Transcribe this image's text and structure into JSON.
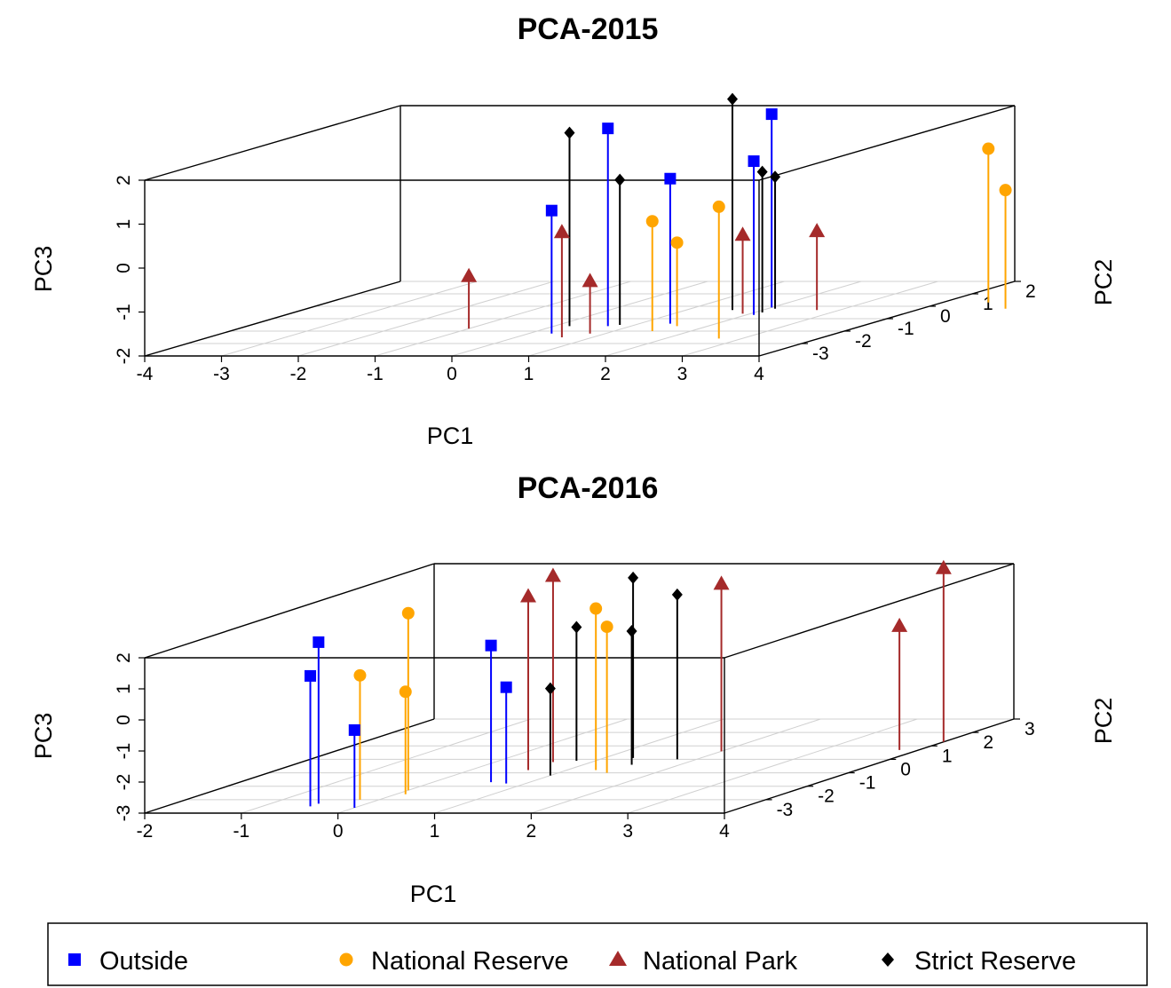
{
  "legend": {
    "items": [
      {
        "label": "Outside",
        "color": "#0000ff",
        "marker": "square"
      },
      {
        "label": "National Reserve",
        "color": "#ffa500",
        "marker": "circle"
      },
      {
        "label": "National Park",
        "color": "#a52a2a",
        "marker": "triangle"
      },
      {
        "label": "Strict Reserve",
        "color": "#000000",
        "marker": "diamond"
      }
    ]
  },
  "chart_data": [
    {
      "type": "scatter3d",
      "title": "PCA-2015",
      "xlabel": "PC1",
      "ylabel": "PC2",
      "zlabel": "PC3",
      "xlim": [
        -4,
        4
      ],
      "ylim": [
        -4,
        2
      ],
      "zlim": [
        -2,
        2
      ],
      "x_ticks": [
        "-4",
        "-3",
        "-2",
        "-1",
        "0",
        "1",
        "2",
        "3",
        "4"
      ],
      "y_ticks": [
        "-3",
        "-2",
        "-1",
        "0",
        "1",
        "2"
      ],
      "z_ticks": [
        "-2",
        "-1",
        "0",
        "1",
        "2"
      ],
      "grid": "floor",
      "series": [
        {
          "name": "Outside",
          "points": [
            [
              0.3,
              -2.2,
              0.8
            ],
            [
              0.7,
              -1.6,
              2.5
            ],
            [
              1.4,
              -1.4,
              1.3
            ],
            [
              2.1,
              -0.7,
              1.5
            ],
            [
              2.0,
              -0.1,
              2.4
            ]
          ]
        },
        {
          "name": "National Reserve",
          "points": [
            [
              1.5,
              -2.0,
              0.5
            ],
            [
              1.6,
              -1.6,
              -0.1
            ],
            [
              2.7,
              -2.6,
              1.0
            ],
            [
              4.6,
              0.3,
              1.5
            ],
            [
              5.1,
              -0.2,
              0.7
            ]
          ]
        },
        {
          "name": "National Park",
          "points": [
            [
              -1.0,
              -1.8,
              -0.8
            ],
            [
              0.6,
              -2.5,
              0.4
            ],
            [
              0.8,
              -2.2,
              -0.8
            ],
            [
              1.9,
              -0.6,
              -0.2
            ],
            [
              2.7,
              -0.3,
              -0.2
            ]
          ]
        },
        {
          "name": "Strict Reserve",
          "points": [
            [
              0.2,
              -1.6,
              2.4
            ],
            [
              0.8,
              -1.5,
              1.3
            ],
            [
              1.6,
              -0.3,
              2.8
            ],
            [
              2.1,
              -0.5,
              1.2
            ],
            [
              2.1,
              -0.2,
              1.0
            ]
          ]
        }
      ]
    },
    {
      "type": "scatter3d",
      "title": "PCA-2016",
      "xlabel": "PC1",
      "ylabel": "PC2",
      "zlabel": "PC3",
      "xlim": [
        -2,
        4
      ],
      "ylim": [
        -4,
        3
      ],
      "zlim": [
        -3,
        2
      ],
      "x_ticks": [
        "-2",
        "-1",
        "0",
        "1",
        "2",
        "3",
        "4"
      ],
      "y_ticks": [
        "-3",
        "-2",
        "-1",
        "0",
        "1",
        "2",
        "3"
      ],
      "z_ticks": [
        "-3",
        "-2",
        "-1",
        "0",
        "1",
        "2"
      ],
      "grid": "floor",
      "series": [
        {
          "name": "Outside",
          "points": [
            [
              -0.5,
              -3.3,
              2.2
            ],
            [
              -0.5,
              -3.5,
              1.2
            ],
            [
              0.0,
              -3.6,
              -0.5
            ],
            [
              0.6,
              -1.7,
              1.4
            ],
            [
              0.8,
              -1.8,
              0.1
            ]
          ]
        },
        {
          "name": "National Reserve",
          "points": [
            [
              -0.2,
              -3.0,
              1.0
            ],
            [
              0.0,
              -2.3,
              2.7
            ],
            [
              0.1,
              -2.6,
              0.3
            ],
            [
              1.3,
              -0.8,
              2.2
            ],
            [
              1.5,
              -1.0,
              1.7
            ]
          ]
        },
        {
          "name": "National Park",
          "points": [
            [
              0.6,
              -0.8,
              2.6
            ],
            [
              0.6,
              -0.2,
              3.0
            ],
            [
              2.0,
              0.6,
              2.4
            ],
            [
              3.8,
              0.7,
              1.0
            ],
            [
              4.0,
              1.3,
              2.6
            ]
          ]
        },
        {
          "name": "Strict Reserve",
          "points": [
            [
              0.8,
              -0.1,
              1.3
            ],
            [
              1.0,
              -1.2,
              -0.2
            ],
            [
              1.3,
              0.1,
              2.8
            ],
            [
              1.5,
              -0.4,
              1.3
            ],
            [
              1.8,
              0.0,
              2.3
            ]
          ]
        }
      ]
    }
  ]
}
